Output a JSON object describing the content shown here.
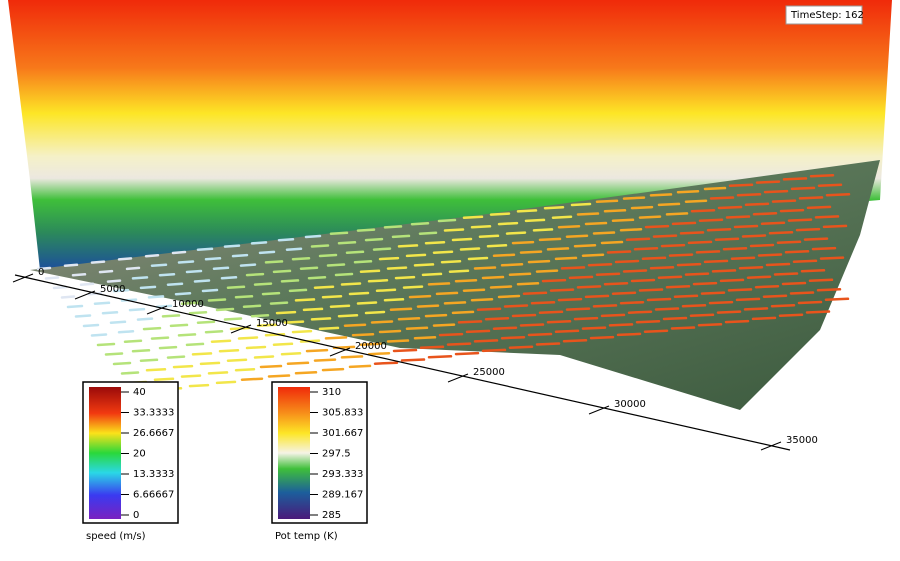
{
  "timestep_label": "TimeStep: 162",
  "axis": {
    "ticks": [
      "0",
      "5000",
      "10000",
      "15000",
      "20000",
      "25000",
      "30000",
      "35000"
    ]
  },
  "legends": [
    {
      "title": "speed (m/s)",
      "ticks": [
        "40",
        "33.3333",
        "26.6667",
        "20",
        "13.3333",
        "6.66667",
        "0"
      ]
    },
    {
      "title": "Pot temp (K)",
      "ticks": [
        "310",
        "305.833",
        "301.667",
        "297.5",
        "293.333",
        "289.167",
        "285"
      ]
    }
  ]
}
